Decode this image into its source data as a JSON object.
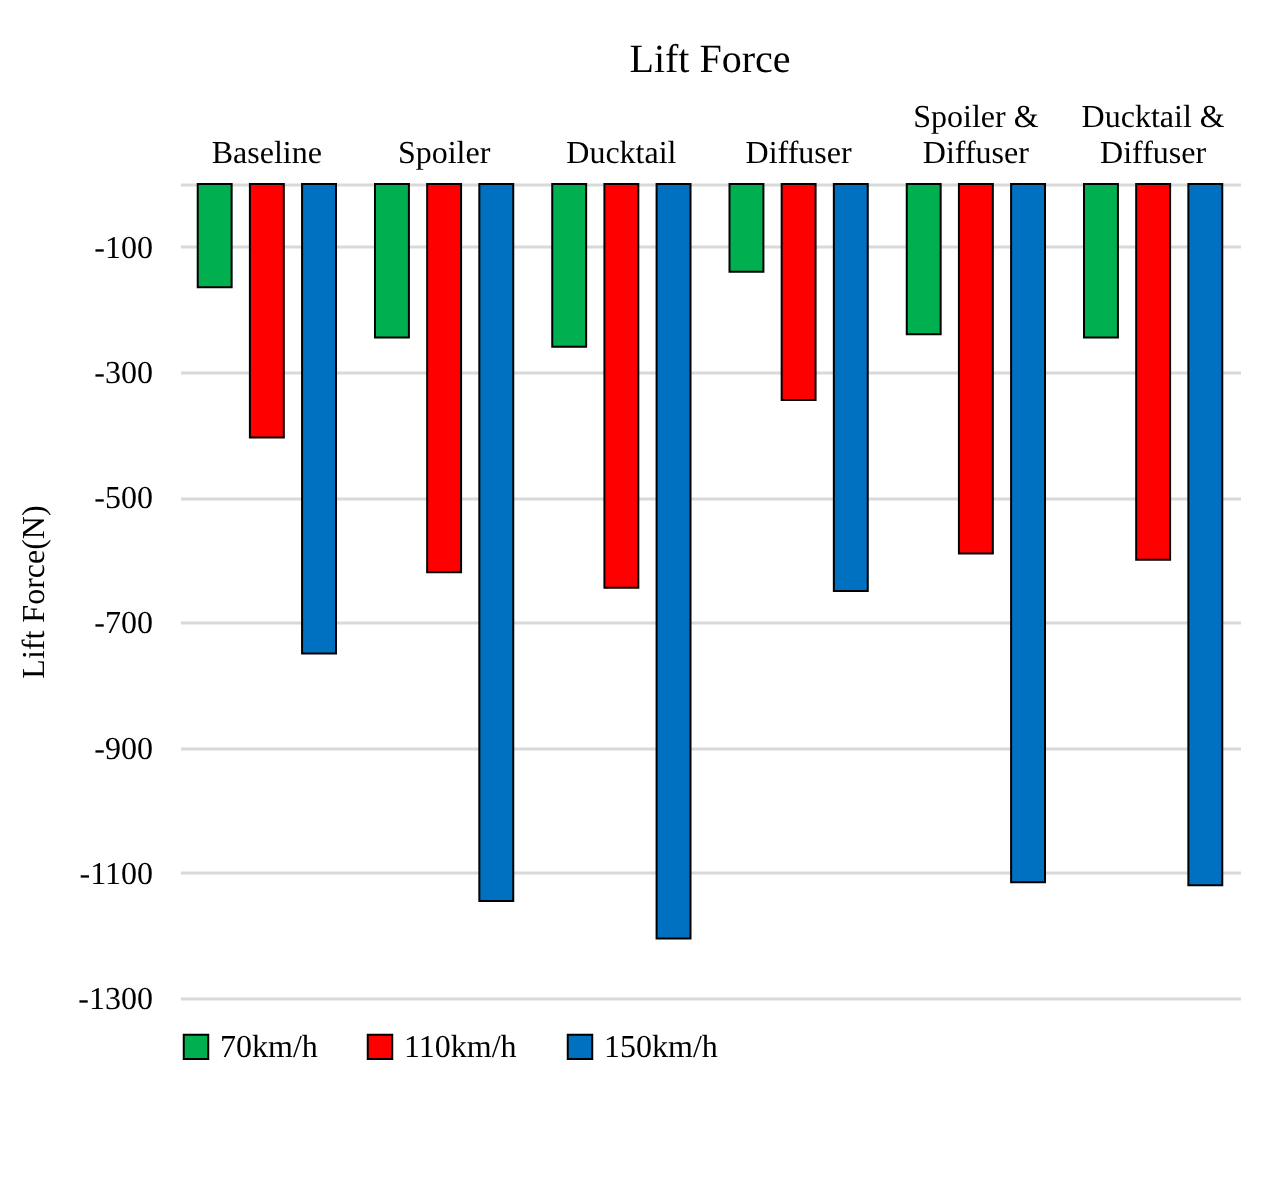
{
  "chart_data": {
    "type": "bar",
    "title": "Lift Force",
    "ylabel": "Lift Force(N)",
    "categories": [
      "Baseline",
      "Spoiler",
      "Ducktail",
      "Diffuser",
      "Spoiler & Diffuser",
      "Ducktail & Diffuser"
    ],
    "series": [
      {
        "name": "70km/h",
        "color": "#00b050",
        "values": [
          -165,
          -245,
          -260,
          -140,
          -240,
          -245
        ]
      },
      {
        "name": "110km/h",
        "color": "#ff0000",
        "values": [
          -405,
          -620,
          -645,
          -345,
          -590,
          -600
        ]
      },
      {
        "name": "150km/h",
        "color": "#0070c0",
        "values": [
          -750,
          -1145,
          -1205,
          -650,
          -1115,
          -1120
        ]
      }
    ],
    "ylim": [
      -1300,
      0
    ],
    "yticks": [
      -100,
      -300,
      -500,
      -700,
      -900,
      -1100,
      -1300
    ],
    "grid": "y",
    "legend": "bottom"
  }
}
